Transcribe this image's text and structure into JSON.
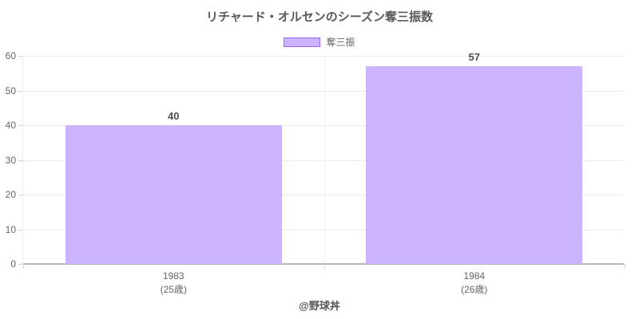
{
  "chart_data": {
    "type": "bar",
    "title": "リチャード・オルセンのシーズン奪三振数",
    "series": [
      {
        "name": "奪三振",
        "values": [
          40,
          57
        ]
      }
    ],
    "categories": [
      "1983",
      "1984"
    ],
    "category_sublabels": [
      "(25歳)",
      "(26歳)"
    ],
    "data_labels": [
      "40",
      "57"
    ],
    "xlabel": "",
    "ylabel": "",
    "ylim": [
      0,
      60
    ],
    "yticks": [
      0,
      10,
      20,
      30,
      40,
      50,
      60
    ],
    "grid": true,
    "legend_position": "top",
    "colors": {
      "bar_fill": "#ccb3ff",
      "bar_border": "#9966ff",
      "gridline": "#ececec",
      "axis_line": "#b8b8b8",
      "tick_text": "#666666",
      "title_text": "#595959"
    }
  },
  "footer": {
    "credit": "@野球丼"
  }
}
